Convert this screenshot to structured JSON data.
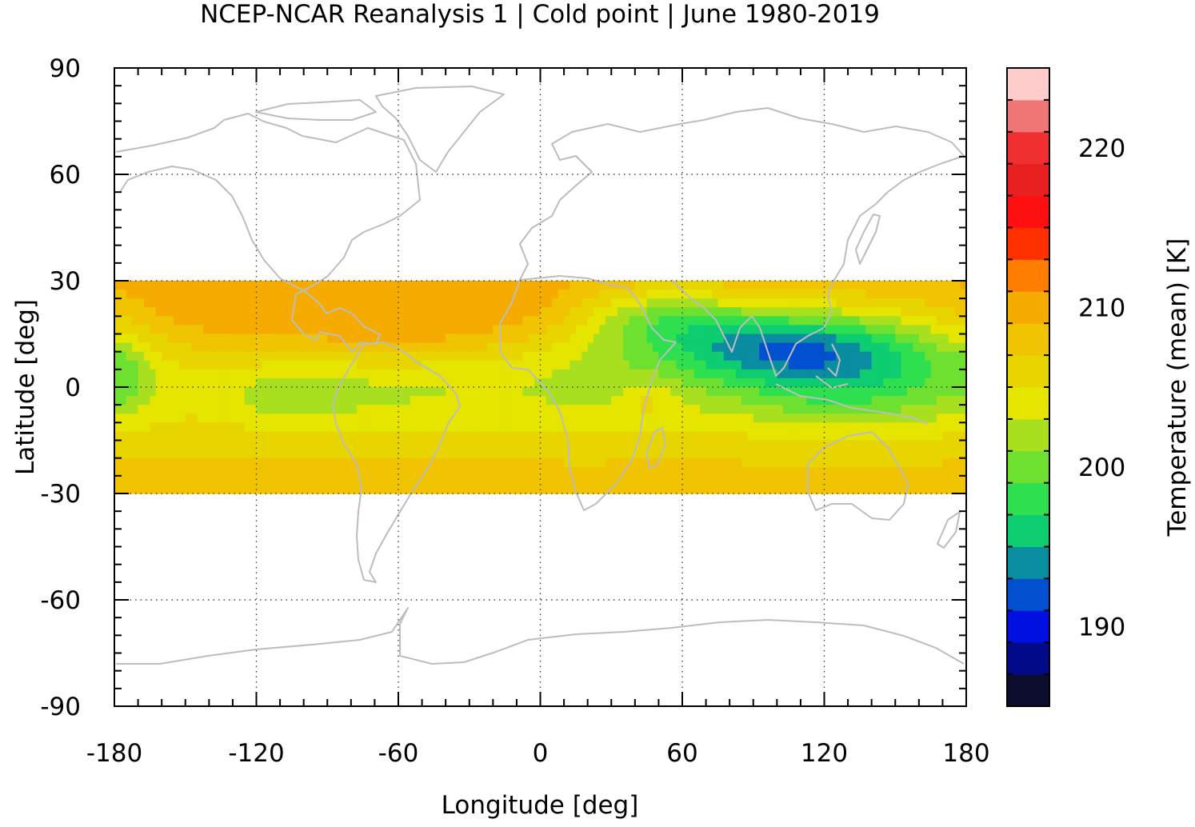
{
  "chart_data": {
    "type": "heatmap",
    "title": "NCEP-NCAR Reanalysis 1 | Cold point | June 1980-2019",
    "xlabel": "Longitude [deg]",
    "ylabel": "Latitude [deg]",
    "colorbar_label": "Temperature (mean) [K]",
    "xlim": [
      -180,
      180
    ],
    "ylim": [
      -90,
      90
    ],
    "x_ticks": [
      -180,
      -120,
      -60,
      0,
      60,
      120,
      180
    ],
    "y_ticks": [
      90,
      60,
      30,
      0,
      -30,
      -60,
      -90
    ],
    "grid": true,
    "colorbar_range": [
      185,
      225
    ],
    "colorbar_ticks": [
      190,
      200,
      210,
      220
    ],
    "colorbar_colors": [
      "#0d0d2e",
      "#020a8a",
      "#0010e0",
      "#0050d0",
      "#0a8da0",
      "#0dcd70",
      "#2ee050",
      "#6ee030",
      "#a8e020",
      "#e5e500",
      "#e8d500",
      "#f0c400",
      "#f5ab00",
      "#ff7d00",
      "#ff3000",
      "#ff1010",
      "#e82020",
      "#f03030",
      "#f07575",
      "#ffcccc"
    ],
    "data_region_lat": [
      -30,
      30
    ],
    "grid_lat": [
      30,
      25,
      20,
      15,
      10,
      5,
      0,
      -5,
      -10,
      -15,
      -20,
      -25,
      -30
    ],
    "value_summary": "Tropical tropopause cold point temperatures range from about 193 K over the western Pacific / Bay of Bengal to about 211 K near 30 degrees latitude.",
    "coldest_region": {
      "lon": [
        90,
        115
      ],
      "lat": [
        10,
        18
      ],
      "value": 192.5
    },
    "warmest_band": {
      "lat": -29,
      "value": 210
    }
  }
}
